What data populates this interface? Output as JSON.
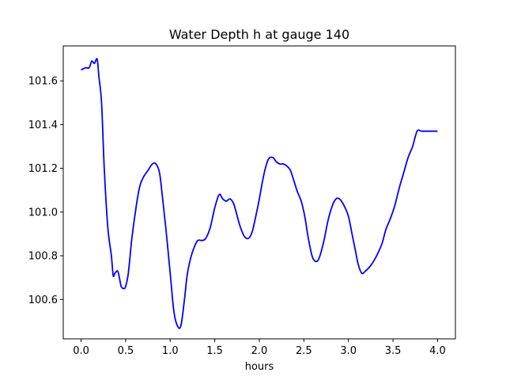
{
  "chart_data": {
    "type": "line",
    "title": "Water Depth h at gauge 140",
    "xlabel": "hours",
    "ylabel": "",
    "xlim": [
      -0.2,
      4.2
    ],
    "ylim": [
      100.42,
      101.76
    ],
    "grid": false,
    "x_ticks": [
      0.0,
      0.5,
      1.0,
      1.5,
      2.0,
      2.5,
      3.0,
      3.5,
      4.0
    ],
    "x_tick_labels": [
      "0.0",
      "0.5",
      "1.0",
      "1.5",
      "2.0",
      "2.5",
      "3.0",
      "3.5",
      "4.0"
    ],
    "y_ticks": [
      100.6,
      100.8,
      101.0,
      101.2,
      101.4,
      101.6
    ],
    "y_tick_labels": [
      "100.6",
      "100.8",
      "101.0",
      "101.2",
      "101.4",
      "101.6"
    ],
    "series": [
      {
        "color": "#0000ff",
        "x": [
          0.0,
          0.05,
          0.09,
          0.12,
          0.15,
          0.18,
          0.2,
          0.23,
          0.26,
          0.3,
          0.34,
          0.36,
          0.38,
          0.41,
          0.43,
          0.45,
          0.48,
          0.5,
          0.53,
          0.57,
          0.62,
          0.66,
          0.7,
          0.75,
          0.8,
          0.84,
          0.88,
          0.91,
          0.95,
          1.0,
          1.04,
          1.08,
          1.12,
          1.16,
          1.19,
          1.23,
          1.27,
          1.31,
          1.36,
          1.4,
          1.45,
          1.5,
          1.55,
          1.59,
          1.63,
          1.67,
          1.71,
          1.74,
          1.78,
          1.83,
          1.88,
          1.92,
          1.96,
          2.0,
          2.05,
          2.1,
          2.15,
          2.19,
          2.23,
          2.27,
          2.31,
          2.35,
          2.39,
          2.43,
          2.47,
          2.51,
          2.55,
          2.6,
          2.66,
          2.72,
          2.77,
          2.82,
          2.86,
          2.9,
          2.95,
          3.0,
          3.04,
          3.08,
          3.11,
          3.15,
          3.19,
          3.24,
          3.29,
          3.34,
          3.38,
          3.42,
          3.47,
          3.52,
          3.57,
          3.62,
          3.67,
          3.72,
          3.77,
          3.82,
          3.87,
          3.92,
          3.96,
          4.0
        ],
        "y": [
          101.65,
          101.66,
          101.66,
          101.69,
          101.68,
          101.7,
          101.62,
          101.5,
          101.2,
          100.93,
          100.8,
          100.71,
          100.72,
          100.73,
          100.7,
          100.66,
          100.65,
          100.66,
          100.72,
          100.88,
          101.03,
          101.12,
          101.16,
          101.19,
          101.22,
          101.22,
          101.18,
          101.08,
          100.93,
          100.72,
          100.55,
          100.48,
          100.48,
          100.6,
          100.71,
          100.79,
          100.84,
          100.87,
          100.87,
          100.88,
          100.93,
          101.02,
          101.08,
          101.06,
          101.05,
          101.06,
          101.04,
          101.0,
          100.94,
          100.89,
          100.88,
          100.91,
          100.98,
          101.06,
          101.17,
          101.24,
          101.25,
          101.23,
          101.22,
          101.22,
          101.21,
          101.19,
          101.14,
          101.09,
          101.05,
          100.98,
          100.88,
          100.79,
          100.78,
          100.86,
          100.96,
          101.03,
          101.06,
          101.06,
          101.03,
          100.98,
          100.9,
          100.82,
          100.76,
          100.72,
          100.73,
          100.75,
          100.78,
          100.82,
          100.86,
          100.92,
          100.97,
          101.03,
          101.11,
          101.18,
          101.25,
          101.3,
          101.37,
          101.37,
          101.37,
          101.37,
          101.37,
          101.37
        ]
      }
    ]
  }
}
